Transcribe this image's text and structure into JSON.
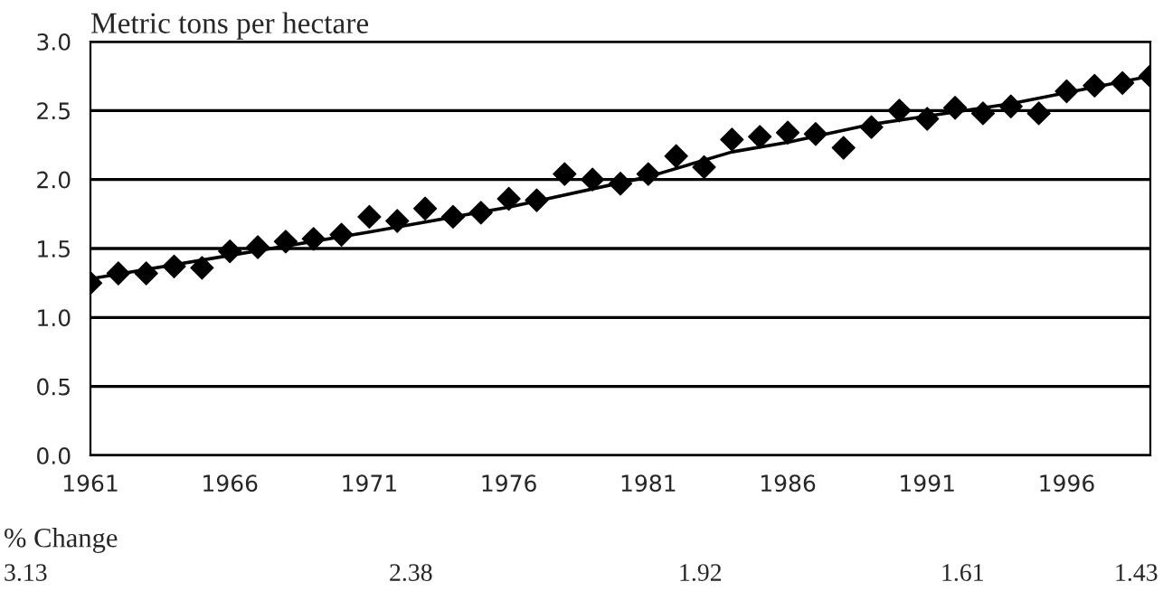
{
  "chart_data": {
    "type": "scatter",
    "ylabel": "Metric tons per hectare",
    "x": [
      1961,
      1962,
      1963,
      1964,
      1965,
      1966,
      1967,
      1968,
      1969,
      1970,
      1971,
      1972,
      1973,
      1974,
      1975,
      1976,
      1977,
      1978,
      1979,
      1980,
      1981,
      1982,
      1983,
      1984,
      1985,
      1986,
      1987,
      1988,
      1989,
      1990,
      1991,
      1992,
      1993,
      1994,
      1995,
      1996,
      1997,
      1998,
      1999
    ],
    "series": [
      {
        "color": "#000000",
        "marker": "diamond",
        "values": [
          1.25,
          1.32,
          1.32,
          1.37,
          1.36,
          1.48,
          1.51,
          1.55,
          1.57,
          1.6,
          1.73,
          1.7,
          1.79,
          1.73,
          1.76,
          1.86,
          1.85,
          2.04,
          2.0,
          1.97,
          2.04,
          2.17,
          2.09,
          2.29,
          2.31,
          2.34,
          2.33,
          2.23,
          2.38,
          2.5,
          2.44,
          2.52,
          2.48,
          2.53,
          2.48,
          2.64,
          2.68,
          2.7,
          2.75
        ]
      },
      {
        "type": "line",
        "color": "#000000",
        "marker": "none",
        "line_style": "solid",
        "x": [
          1961,
          1966,
          1971,
          1976,
          1981,
          1984,
          1986,
          1989,
          1991,
          1994,
          1999
        ],
        "values": [
          1.28,
          1.45,
          1.62,
          1.8,
          2.02,
          2.2,
          2.27,
          2.4,
          2.46,
          2.55,
          2.75
        ]
      }
    ],
    "xlim": [
      1961,
      1999
    ],
    "xticks": [
      1961,
      1966,
      1971,
      1976,
      1981,
      1986,
      1991,
      1996
    ],
    "ylim": [
      0,
      3
    ],
    "yticks": [
      {
        "value": 0,
        "label": "0.0"
      },
      {
        "value": 0.5,
        "label": "0.5"
      },
      {
        "value": 1,
        "label": "1.0"
      },
      {
        "value": 1.5,
        "label": "1.5"
      },
      {
        "value": 2,
        "label": "2.0"
      },
      {
        "value": 2.5,
        "label": "2.5"
      },
      {
        "value": 3,
        "label": "3.0"
      }
    ],
    "grid": "y",
    "legend": false,
    "annotations": [
      "% Change",
      "3.13",
      "2.38",
      "1.92",
      "1.61",
      "1.43"
    ]
  }
}
